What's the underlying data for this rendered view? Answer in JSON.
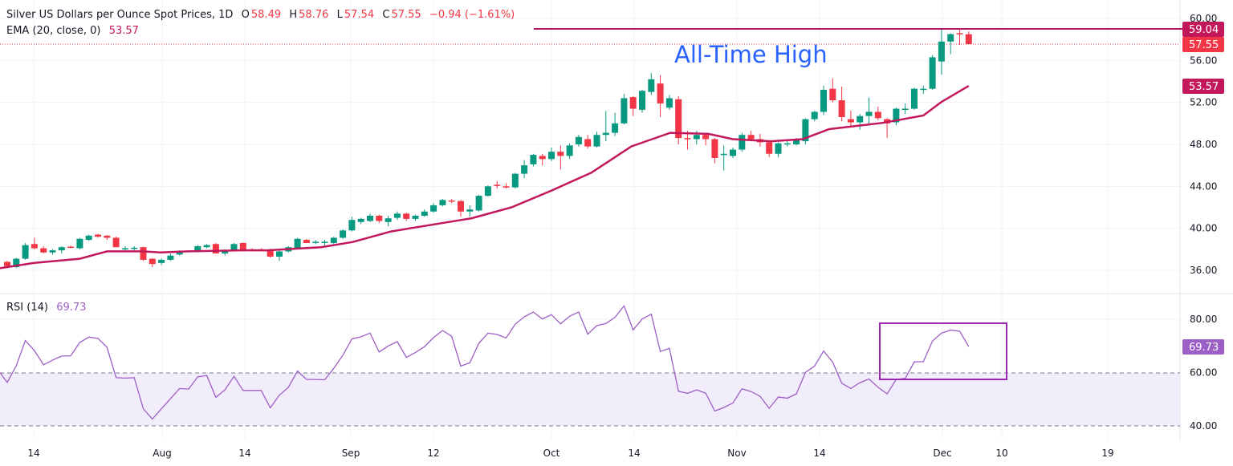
{
  "header": {
    "symbol": "Silver US Dollars per Ounce Spot Prices, 1D",
    "o_label": "O",
    "open": "58.49",
    "h_label": "H",
    "high": "58.76",
    "l_label": "L",
    "low": "57.54",
    "c_label": "C",
    "close": "57.55",
    "change": "−0.94 (−1.61%)"
  },
  "ema_legend": {
    "label": "EMA (20, close, 0)",
    "value": "53.57"
  },
  "rsi_legend": {
    "label": "RSI (14)",
    "value": "69.73"
  },
  "annotation": {
    "text": "All-Time High",
    "level": 59.04
  },
  "price_tags": {
    "ath": "59.04",
    "last": "57.55",
    "ema": "53.57"
  },
  "rsi_tag": "69.73",
  "colors": {
    "up": "#089981",
    "down": "#f23645",
    "ema": "#c2185b",
    "rsi": "#9c5fc5",
    "annotation": "#2962ff",
    "box": "#9c27b0"
  },
  "chart_data": [
    {
      "type": "candlestick",
      "title": "Silver US Dollars per Ounce Spot Prices, 1D",
      "ylim": [
        34,
        61
      ],
      "yticks": [
        "60.00",
        "56.00",
        "52.00",
        "48.00",
        "44.00",
        "40.00",
        "36.00"
      ],
      "xticks": [
        "14",
        "Aug",
        "14",
        "Sep",
        "12",
        "Oct",
        "14",
        "Nov",
        "14",
        "Dec",
        "10",
        "19"
      ],
      "ohlc": [
        [
          36.8,
          36.9,
          36.3,
          36.4
        ],
        [
          36.3,
          37.2,
          36.2,
          37.1
        ],
        [
          37.1,
          38.6,
          37.0,
          38.4
        ],
        [
          38.5,
          39.1,
          38.0,
          38.1
        ],
        [
          38.1,
          38.3,
          37.6,
          37.7
        ],
        [
          37.7,
          38.0,
          37.5,
          37.9
        ],
        [
          37.9,
          38.3,
          37.6,
          38.2
        ],
        [
          38.25,
          38.35,
          38.1,
          38.2
        ],
        [
          38.1,
          39.1,
          38.0,
          39.0
        ],
        [
          38.9,
          39.4,
          38.8,
          39.3
        ],
        [
          39.4,
          39.5,
          39.1,
          39.2
        ],
        [
          39.3,
          39.35,
          38.9,
          39.1
        ],
        [
          39.1,
          39.2,
          38.2,
          38.2
        ],
        [
          38.1,
          38.3,
          37.9,
          38.1
        ],
        [
          38.1,
          38.3,
          37.9,
          38.15
        ],
        [
          38.2,
          38.25,
          36.9,
          37.0
        ],
        [
          37.1,
          37.15,
          36.3,
          36.6
        ],
        [
          36.7,
          37.1,
          36.5,
          37.0
        ],
        [
          37.0,
          37.6,
          36.9,
          37.4
        ],
        [
          37.5,
          37.9,
          37.4,
          37.8
        ],
        [
          37.85,
          37.9,
          37.7,
          37.8
        ],
        [
          37.8,
          38.4,
          37.7,
          38.3
        ],
        [
          38.2,
          38.5,
          38.1,
          38.4
        ],
        [
          38.5,
          38.6,
          37.6,
          37.6
        ],
        [
          37.6,
          38.0,
          37.4,
          37.9
        ],
        [
          37.9,
          38.6,
          37.8,
          38.5
        ],
        [
          38.6,
          38.65,
          37.9,
          37.9
        ],
        [
          38.0,
          38.1,
          37.85,
          37.9
        ],
        [
          38.0,
          38.1,
          37.85,
          37.9
        ],
        [
          38.0,
          38.05,
          37.2,
          37.3
        ],
        [
          37.3,
          37.9,
          36.9,
          37.8
        ],
        [
          37.8,
          38.3,
          37.7,
          38.2
        ],
        [
          38.1,
          39.1,
          38.0,
          39.0
        ],
        [
          38.9,
          39.0,
          38.6,
          38.6
        ],
        [
          38.7,
          38.9,
          38.5,
          38.72
        ],
        [
          38.7,
          38.9,
          38.2,
          38.72
        ],
        [
          38.6,
          39.2,
          38.5,
          39.1
        ],
        [
          39.1,
          39.9,
          39.0,
          39.8
        ],
        [
          39.8,
          41.1,
          39.7,
          40.8
        ],
        [
          40.6,
          41.0,
          40.4,
          40.9
        ],
        [
          40.7,
          41.4,
          40.6,
          41.2
        ],
        [
          41.2,
          41.3,
          40.5,
          40.7
        ],
        [
          40.6,
          41.2,
          40.2,
          40.95
        ],
        [
          41.0,
          41.6,
          40.8,
          41.4
        ],
        [
          41.4,
          41.5,
          40.7,
          40.9
        ],
        [
          40.9,
          41.3,
          40.7,
          41.2
        ],
        [
          41.2,
          41.8,
          41.1,
          41.6
        ],
        [
          41.6,
          42.4,
          41.5,
          42.2
        ],
        [
          42.2,
          42.8,
          42.1,
          42.7
        ],
        [
          42.65,
          42.8,
          42.4,
          42.6
        ],
        [
          42.6,
          42.7,
          41.1,
          41.6
        ],
        [
          41.6,
          42.2,
          41.1,
          41.8
        ],
        [
          41.7,
          43.2,
          41.6,
          43.1
        ],
        [
          43.1,
          44.1,
          43.0,
          44.0
        ],
        [
          44.15,
          44.5,
          43.8,
          44.1
        ],
        [
          44.0,
          44.3,
          43.8,
          43.9
        ],
        [
          43.9,
          45.3,
          43.8,
          45.2
        ],
        [
          45.2,
          46.5,
          44.8,
          46.0
        ],
        [
          46.1,
          47.1,
          45.9,
          47.0
        ],
        [
          46.9,
          47.1,
          46.0,
          46.6
        ],
        [
          46.6,
          47.7,
          46.4,
          47.3
        ],
        [
          47.3,
          47.9,
          45.6,
          46.9
        ],
        [
          46.9,
          48.1,
          46.6,
          47.9
        ],
        [
          48.0,
          48.9,
          47.8,
          48.7
        ],
        [
          48.5,
          48.9,
          47.6,
          47.8
        ],
        [
          47.8,
          49.2,
          47.7,
          48.9
        ],
        [
          48.9,
          51.2,
          48.3,
          49.1
        ],
        [
          49.1,
          51.0,
          48.8,
          50.0
        ],
        [
          50.0,
          52.8,
          49.9,
          52.4
        ],
        [
          52.5,
          52.6,
          50.7,
          51.4
        ],
        [
          51.3,
          53.2,
          51.0,
          53.1
        ],
        [
          53.0,
          54.8,
          52.7,
          54.2
        ],
        [
          53.8,
          54.6,
          50.6,
          51.9
        ],
        [
          51.5,
          52.7,
          51.3,
          52.4
        ],
        [
          52.3,
          52.6,
          48.0,
          48.6
        ],
        [
          48.6,
          49.3,
          47.5,
          48.5
        ],
        [
          48.5,
          49.3,
          48.0,
          48.9
        ],
        [
          48.9,
          49.1,
          47.9,
          48.5
        ],
        [
          48.5,
          48.6,
          46.2,
          46.7
        ],
        [
          47.1,
          47.9,
          45.5,
          47.1
        ],
        [
          46.9,
          47.7,
          46.7,
          47.5
        ],
        [
          47.5,
          49.1,
          47.3,
          48.9
        ],
        [
          48.9,
          49.3,
          48.4,
          48.5
        ],
        [
          48.5,
          49.0,
          47.8,
          48.2
        ],
        [
          48.2,
          48.3,
          46.8,
          47.1
        ],
        [
          47.1,
          48.2,
          46.8,
          48.1
        ],
        [
          48.0,
          48.5,
          47.8,
          48.1
        ],
        [
          48.0,
          48.6,
          47.9,
          48.4
        ],
        [
          48.3,
          50.5,
          48.0,
          50.4
        ],
        [
          50.4,
          51.2,
          50.2,
          51.1
        ],
        [
          51.1,
          53.6,
          50.8,
          53.2
        ],
        [
          53.3,
          54.3,
          52.0,
          52.2
        ],
        [
          52.2,
          53.5,
          50.2,
          50.6
        ],
        [
          50.4,
          51.2,
          49.6,
          50.1
        ],
        [
          50.1,
          50.9,
          49.4,
          50.7
        ],
        [
          50.7,
          52.45,
          49.8,
          51.1
        ],
        [
          51.1,
          51.6,
          50.3,
          50.5
        ],
        [
          50.4,
          50.5,
          48.6,
          50.0
        ],
        [
          50.1,
          51.5,
          49.8,
          51.4
        ],
        [
          51.35,
          51.9,
          50.9,
          51.4
        ],
        [
          51.4,
          53.4,
          51.3,
          53.3
        ],
        [
          53.25,
          53.6,
          52.8,
          53.3
        ],
        [
          53.3,
          56.5,
          53.2,
          56.3
        ],
        [
          55.9,
          59.0,
          54.65,
          57.8
        ],
        [
          57.8,
          58.6,
          56.6,
          58.5
        ],
        [
          58.6,
          59.04,
          57.5,
          58.5
        ],
        [
          58.49,
          58.76,
          57.54,
          57.55
        ]
      ],
      "ema_points": [
        [
          0.2,
          36.2
        ],
        [
          4,
          36.7
        ],
        [
          9,
          37.1
        ],
        [
          12,
          37.8
        ],
        [
          15.9,
          37.8
        ],
        [
          17.9,
          37.7
        ],
        [
          20.8,
          37.8
        ],
        [
          26.8,
          37.9
        ],
        [
          29.7,
          37.9
        ],
        [
          35.6,
          38.2
        ],
        [
          39.1,
          38.7
        ],
        [
          43.3,
          39.7
        ],
        [
          50,
          40.65
        ],
        [
          52.2,
          40.96
        ],
        [
          56.6,
          42.0
        ],
        [
          61,
          43.6
        ],
        [
          65.4,
          45.3
        ],
        [
          69.8,
          47.8
        ],
        [
          72.1,
          48.5
        ],
        [
          74.1,
          49.1
        ],
        [
          78.3,
          49.0
        ],
        [
          81,
          48.5
        ],
        [
          85.2,
          48.3
        ],
        [
          88.7,
          48.5
        ],
        [
          91.6,
          49.45
        ],
        [
          97.5,
          50.05
        ],
        [
          102,
          50.75
        ],
        [
          104,
          52.05
        ],
        [
          107,
          53.57
        ]
      ]
    },
    {
      "type": "line",
      "title": "RSI (14)",
      "ylim": [
        35,
        90
      ],
      "yticks": [
        "80.00",
        "60.00",
        "40.00"
      ],
      "bands": [
        40,
        60
      ],
      "values": [
        60,
        56.3,
        62.6,
        72,
        68.2,
        62.9,
        64.7,
        66.2,
        66.3,
        71.3,
        73.3,
        72.8,
        69.5,
        58.1,
        57.9,
        58.1,
        46.4,
        42.6,
        46.4,
        50.2,
        54,
        53.8,
        58.4,
        58.9,
        50.7,
        53.5,
        58.6,
        53.3,
        53.3,
        53.3,
        46.8,
        51.5,
        54.5,
        60.6,
        57.4,
        57.4,
        57.3,
        61.6,
        66.5,
        72.6,
        73.4,
        74.8,
        67.7,
        70,
        71.6,
        65.7,
        67.5,
        69.7,
        73.1,
        75.8,
        73.6,
        62.4,
        63.7,
        71,
        74.8,
        74.3,
        73,
        78.1,
        80.9,
        82.7,
        80.1,
        81.7,
        78.3,
        81.1,
        82.7,
        74.4,
        77.6,
        78.4,
        80.7,
        85,
        76,
        80.1,
        81.9,
        67.9,
        69.1,
        53,
        52.2,
        53.5,
        52.3,
        45.6,
        46.9,
        48.6,
        53.9,
        52.9,
        51.1,
        46.6,
        50.8,
        50.4,
        52,
        60.1,
        62.4,
        68.1,
        63.9,
        56,
        54,
        56.2,
        57.6,
        54.5,
        52,
        57.4,
        57.8,
        64,
        64.1,
        71.8,
        74.8,
        75.9,
        75.5,
        69.73
      ]
    }
  ]
}
